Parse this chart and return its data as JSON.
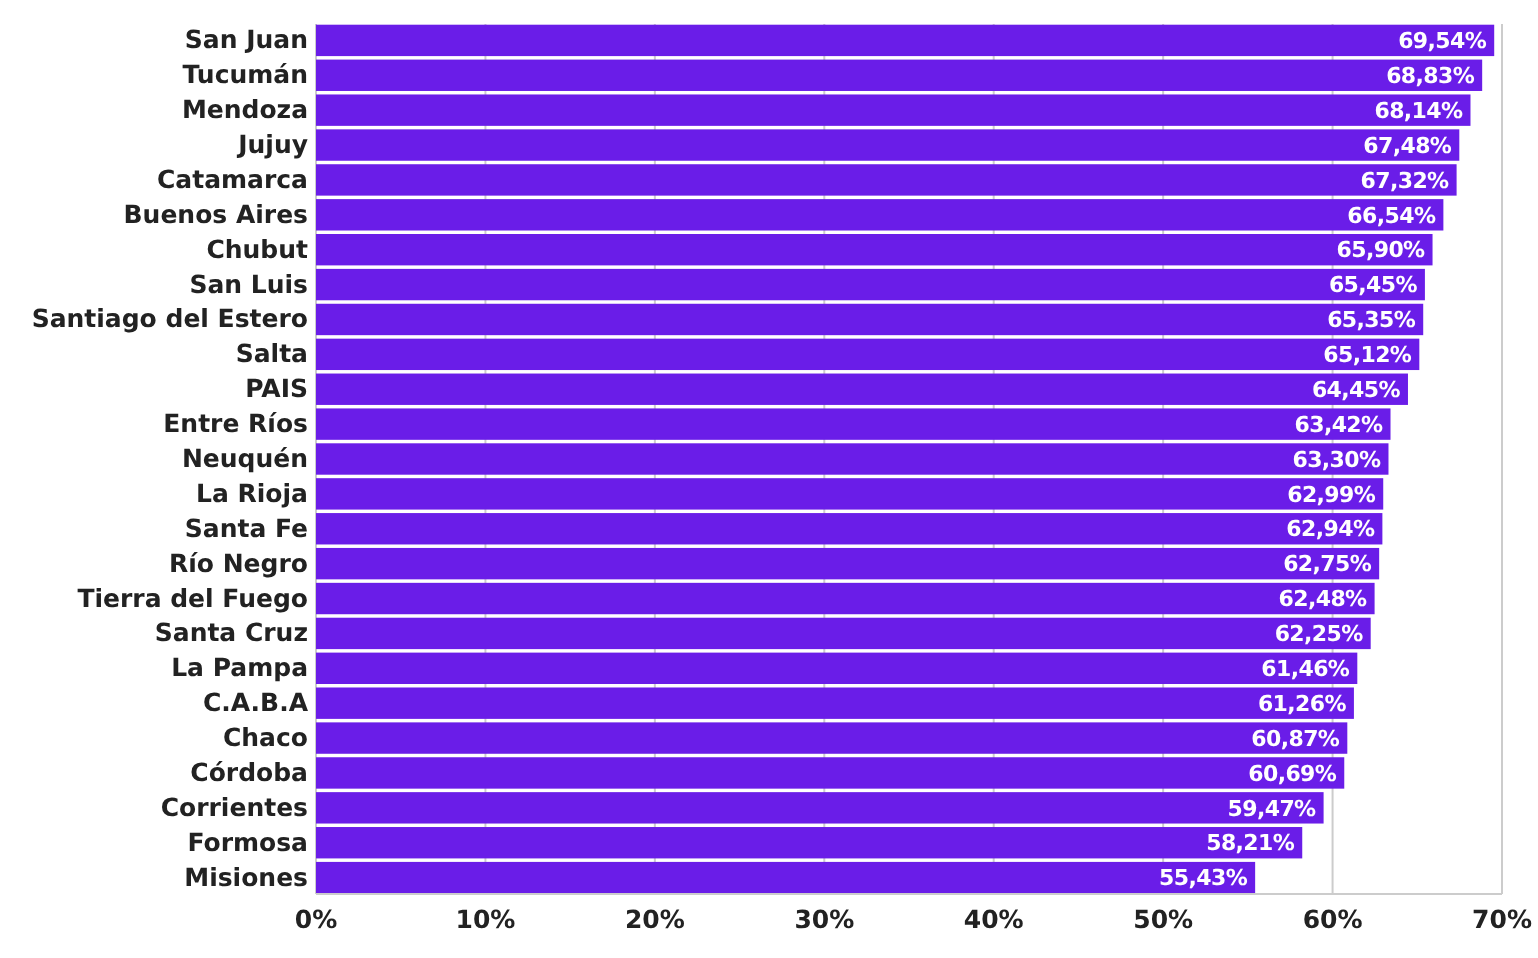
{
  "chart_data": {
    "type": "bar",
    "orientation": "horizontal",
    "categories": [
      "San Juan",
      "Tucumán",
      "Mendoza",
      "Jujuy",
      "Catamarca",
      "Buenos Aires",
      "Chubut",
      "San Luis",
      "Santiago del Estero",
      "Salta",
      "PAIS",
      "Entre Ríos",
      "Neuquén",
      "La Rioja",
      "Santa Fe",
      "Río Negro",
      "Tierra del Fuego",
      "Santa Cruz",
      "La Pampa",
      "C.A.B.A",
      "Chaco",
      "Córdoba",
      "Corrientes",
      "Formosa",
      "Misiones"
    ],
    "values": [
      69.54,
      68.83,
      68.14,
      67.48,
      67.32,
      66.54,
      65.9,
      65.45,
      65.35,
      65.12,
      64.45,
      63.42,
      63.3,
      62.99,
      62.94,
      62.75,
      62.48,
      62.25,
      61.46,
      61.26,
      60.87,
      60.69,
      59.47,
      58.21,
      55.43
    ],
    "value_labels": [
      "69,54%",
      "68,83%",
      "68,14%",
      "67,48%",
      "67,32%",
      "66,54%",
      "65,90%",
      "65,45%",
      "65,35%",
      "65,12%",
      "64,45%",
      "63,42%",
      "63,30%",
      "62,99%",
      "62,94%",
      "62,75%",
      "62,48%",
      "62,25%",
      "61,46%",
      "61,26%",
      "60,87%",
      "60,69%",
      "59,47%",
      "58,21%",
      "55,43%"
    ],
    "color": "#6a1de8",
    "xlim": [
      0,
      70
    ],
    "xticks": [
      {
        "value": 0,
        "label": "0%"
      },
      {
        "value": 10,
        "label": "10%"
      },
      {
        "value": 20,
        "label": "20%"
      },
      {
        "value": 30,
        "label": "30%"
      },
      {
        "value": 40,
        "label": "40%"
      },
      {
        "value": 50,
        "label": "50%"
      },
      {
        "value": 60,
        "label": "60%"
      },
      {
        "value": 70,
        "label": "70%"
      }
    ],
    "grid": "x"
  }
}
